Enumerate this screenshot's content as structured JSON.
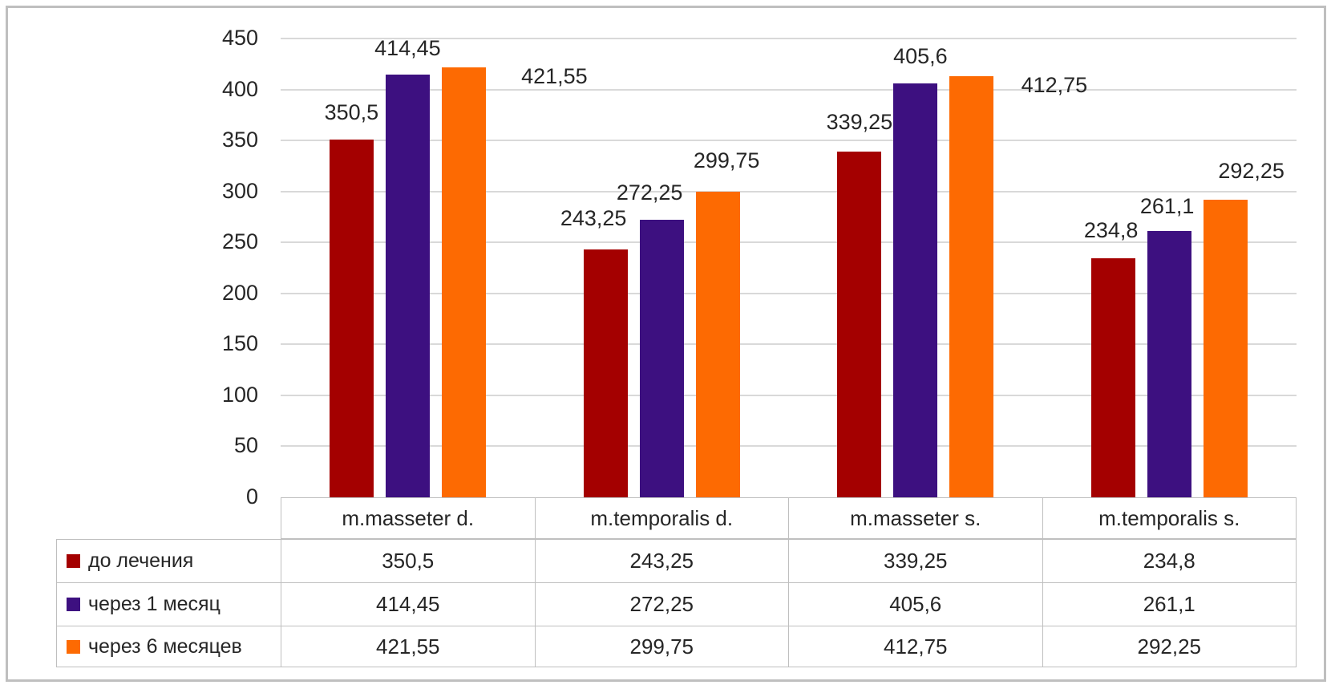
{
  "chart_data": {
    "type": "bar",
    "title": "",
    "xlabel": "",
    "ylabel": "",
    "categories": [
      "m.masseter d.",
      "m.temporalis d.",
      "m.masseter s.",
      "m.temporalis s."
    ],
    "series": [
      {
        "name": "до лечения",
        "color": "#a40000",
        "values": [
          350.5,
          243.25,
          339.25,
          234.8
        ],
        "labels": [
          "350,5",
          "243,25",
          "339,25",
          "234,8"
        ]
      },
      {
        "name": "через 1 месяц",
        "color": "#3d1080",
        "values": [
          414.45,
          272.25,
          405.6,
          261.1
        ],
        "labels": [
          "414,45",
          "272,25",
          "405,6",
          "261,1"
        ]
      },
      {
        "name": "через 6 месяцев",
        "color": "#fd6a02",
        "values": [
          421.55,
          299.75,
          412.75,
          292.25
        ],
        "labels": [
          "421,55",
          "299,75",
          "412,75",
          "292,25"
        ]
      }
    ],
    "y_axis": {
      "min": 0,
      "max": 450,
      "step": 50,
      "tick_labels": [
        "0",
        "50",
        "100",
        "150",
        "200",
        "250",
        "300",
        "350",
        "400",
        "450"
      ]
    },
    "grid": true,
    "legend_position": "data-table-left",
    "data_table_shown": true,
    "colors": {
      "gridline": "#d9d9d9",
      "table_border": "#bfbfbf",
      "frame_border": "#bfbfbf",
      "text": "#262626"
    }
  }
}
